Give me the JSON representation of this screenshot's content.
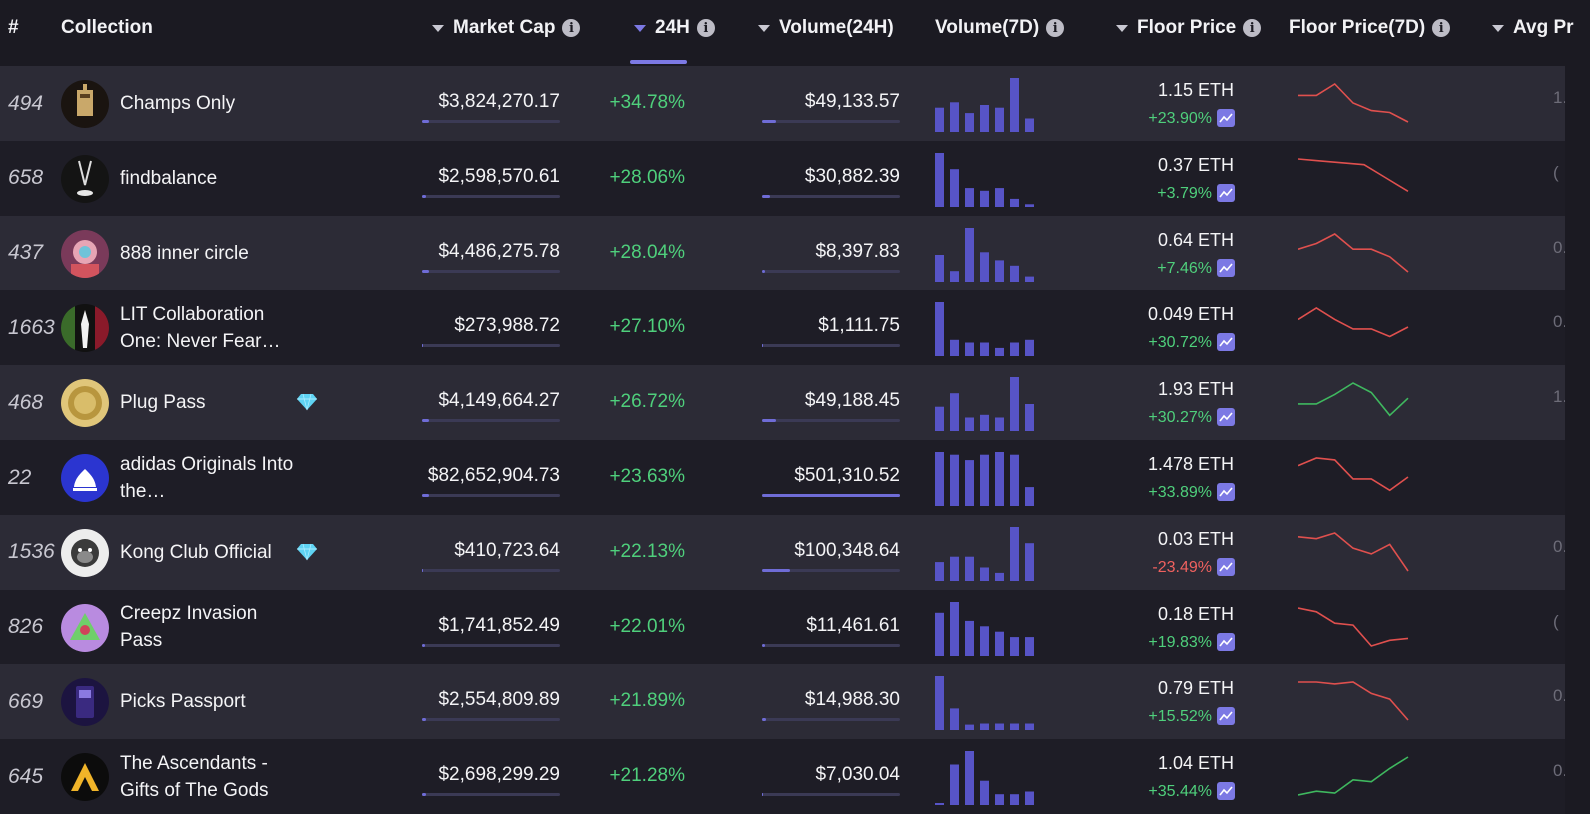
{
  "header": {
    "rank": "#",
    "collection": "Collection",
    "market_cap": "Market Cap",
    "change_24h": "24H",
    "volume_24h": "Volume(24H)",
    "volume_7d": "Volume(7D)",
    "floor_price": "Floor Price",
    "floor_price_7d": "Floor Price(7D)",
    "avg_price": "Avg Pr"
  },
  "info_glyph": "i",
  "colors": {
    "accent": "#7c79e4",
    "positive": "#4fd07c",
    "negative": "#f0615f"
  },
  "rows": [
    {
      "rank": "494",
      "name": "Champs Only",
      "verified": false,
      "market_cap": "$3,824,270.17",
      "mcap_share": 0.05,
      "change": "+34.78%",
      "volume": "$49,133.57",
      "vol_share": 0.1,
      "vol7d": [
        0.45,
        0.55,
        0.35,
        0.5,
        0.45,
        1.0,
        0.25
      ],
      "floor": "1.15 ETH",
      "floor_change": "+23.90%",
      "floor_neg": false,
      "floor7d": [
        0.3,
        0.3,
        0.0,
        0.5,
        0.7,
        0.75,
        1.0
      ],
      "floor7d_color": "negative",
      "avg": "1.",
      "avatar": "champs"
    },
    {
      "rank": "658",
      "name": "findbalance",
      "verified": false,
      "market_cap": "$2,598,570.61",
      "mcap_share": 0.03,
      "change": "+28.06%",
      "volume": "$30,882.39",
      "vol_share": 0.06,
      "vol7d": [
        1.0,
        0.7,
        0.35,
        0.3,
        0.35,
        0.15,
        0.05
      ],
      "floor": "0.37 ETH",
      "floor_change": "+3.79%",
      "floor_neg": false,
      "floor7d": [
        0.0,
        0.05,
        0.1,
        0.15,
        0.5,
        0.85
      ],
      "floor7d_color": "negative",
      "avg": "(",
      "avatar": "findbalance"
    },
    {
      "rank": "437",
      "name": "888 inner circle",
      "verified": false,
      "market_cap": "$4,486,275.78",
      "mcap_share": 0.05,
      "change": "+28.04%",
      "volume": "$8,397.83",
      "vol_share": 0.02,
      "vol7d": [
        0.5,
        0.2,
        1.0,
        0.55,
        0.4,
        0.3,
        0.1
      ],
      "floor": "0.64 ETH",
      "floor_change": "+7.46%",
      "floor_neg": false,
      "floor7d": [
        0.4,
        0.25,
        0.0,
        0.4,
        0.4,
        0.6,
        1.0
      ],
      "floor7d_color": "negative",
      "avg": "0.",
      "avatar": "inner888"
    },
    {
      "rank": "1663",
      "name": "LIT Collaboration One: Never Fear…",
      "verified": false,
      "market_cap": "$273,988.72",
      "mcap_share": 0.01,
      "change": "+27.10%",
      "volume": "$1,111.75",
      "vol_share": 0.01,
      "vol7d": [
        1.0,
        0.3,
        0.25,
        0.25,
        0.15,
        0.25,
        0.3
      ],
      "floor": "0.049 ETH",
      "floor_change": "+30.72%",
      "floor_neg": false,
      "floor7d": [
        0.3,
        0.0,
        0.3,
        0.55,
        0.55,
        0.75,
        0.5
      ],
      "floor7d_color": "negative",
      "avg": "0.",
      "avatar": "lit"
    },
    {
      "rank": "468",
      "name": "Plug Pass",
      "verified": true,
      "market_cap": "$4,149,664.27",
      "mcap_share": 0.05,
      "change": "+26.72%",
      "volume": "$49,188.45",
      "vol_share": 0.1,
      "vol7d": [
        0.45,
        0.7,
        0.25,
        0.3,
        0.25,
        1.0,
        0.5
      ],
      "floor": "1.93 ETH",
      "floor_change": "+30.27%",
      "floor_neg": false,
      "floor7d": [
        0.55,
        0.55,
        0.3,
        0.0,
        0.25,
        0.85,
        0.4
      ],
      "floor7d_color": "positive",
      "avg": "1.",
      "avatar": "plug"
    },
    {
      "rank": "22",
      "name": "adidas Originals Into the…",
      "verified": false,
      "market_cap": "$82,652,904.73",
      "mcap_share": 0.05,
      "change": "+23.63%",
      "volume": "$501,310.52",
      "vol_share": 1.0,
      "vol7d": [
        1.0,
        0.95,
        0.85,
        0.95,
        1.0,
        0.95,
        0.35
      ],
      "floor": "1.478 ETH",
      "floor_change": "+33.89%",
      "floor_neg": false,
      "floor7d": [
        0.2,
        0.0,
        0.05,
        0.55,
        0.55,
        0.85,
        0.5
      ],
      "floor7d_color": "negative",
      "avg": "",
      "avatar": "adidas"
    },
    {
      "rank": "1536",
      "name": "Kong Club Official",
      "verified": true,
      "market_cap": "$410,723.64",
      "mcap_share": 0.01,
      "change": "+22.13%",
      "volume": "$100,348.64",
      "vol_share": 0.2,
      "vol7d": [
        0.35,
        0.45,
        0.45,
        0.25,
        0.15,
        1.0,
        0.7
      ],
      "floor": "0.03 ETH",
      "floor_change": "-23.49%",
      "floor_neg": true,
      "floor7d": [
        0.1,
        0.15,
        0.0,
        0.4,
        0.55,
        0.3,
        1.0
      ],
      "floor7d_color": "negative",
      "avg": "0.",
      "avatar": "kong"
    },
    {
      "rank": "826",
      "name": "Creepz Invasion Pass",
      "verified": false,
      "market_cap": "$1,741,852.49",
      "mcap_share": 0.02,
      "change": "+22.01%",
      "volume": "$11,461.61",
      "vol_share": 0.02,
      "vol7d": [
        0.8,
        1.0,
        0.65,
        0.55,
        0.45,
        0.35,
        0.35
      ],
      "floor": "0.18 ETH",
      "floor_change": "+19.83%",
      "floor_neg": false,
      "floor7d": [
        0.0,
        0.1,
        0.4,
        0.45,
        1.0,
        0.85,
        0.8
      ],
      "floor7d_color": "negative",
      "avg": "(",
      "avatar": "creepz"
    },
    {
      "rank": "669",
      "name": "Picks Passport",
      "verified": false,
      "market_cap": "$2,554,809.89",
      "mcap_share": 0.03,
      "change": "+21.89%",
      "volume": "$14,988.30",
      "vol_share": 0.03,
      "vol7d": [
        1.0,
        0.4,
        0.1,
        0.12,
        0.12,
        0.12,
        0.12
      ],
      "floor": "0.79 ETH",
      "floor_change": "+15.52%",
      "floor_neg": false,
      "floor7d": [
        0.0,
        0.0,
        0.05,
        0.0,
        0.3,
        0.45,
        1.0
      ],
      "floor7d_color": "negative",
      "avg": "0.",
      "avatar": "picks"
    },
    {
      "rank": "645",
      "name": "The Ascendants - Gifts of The Gods",
      "verified": false,
      "market_cap": "$2,698,299.29",
      "mcap_share": 0.03,
      "change": "+21.28%",
      "volume": "$7,030.04",
      "vol_share": 0.01,
      "vol7d": [
        0.0,
        0.75,
        1.0,
        0.45,
        0.2,
        0.2,
        0.25
      ],
      "floor": "1.04 ETH",
      "floor_change": "+35.44%",
      "floor_neg": false,
      "floor7d": [
        1.0,
        0.9,
        0.95,
        0.6,
        0.65,
        0.3,
        0.0
      ],
      "floor7d_color": "positive",
      "avg": "0.",
      "avatar": "ascendants"
    }
  ]
}
